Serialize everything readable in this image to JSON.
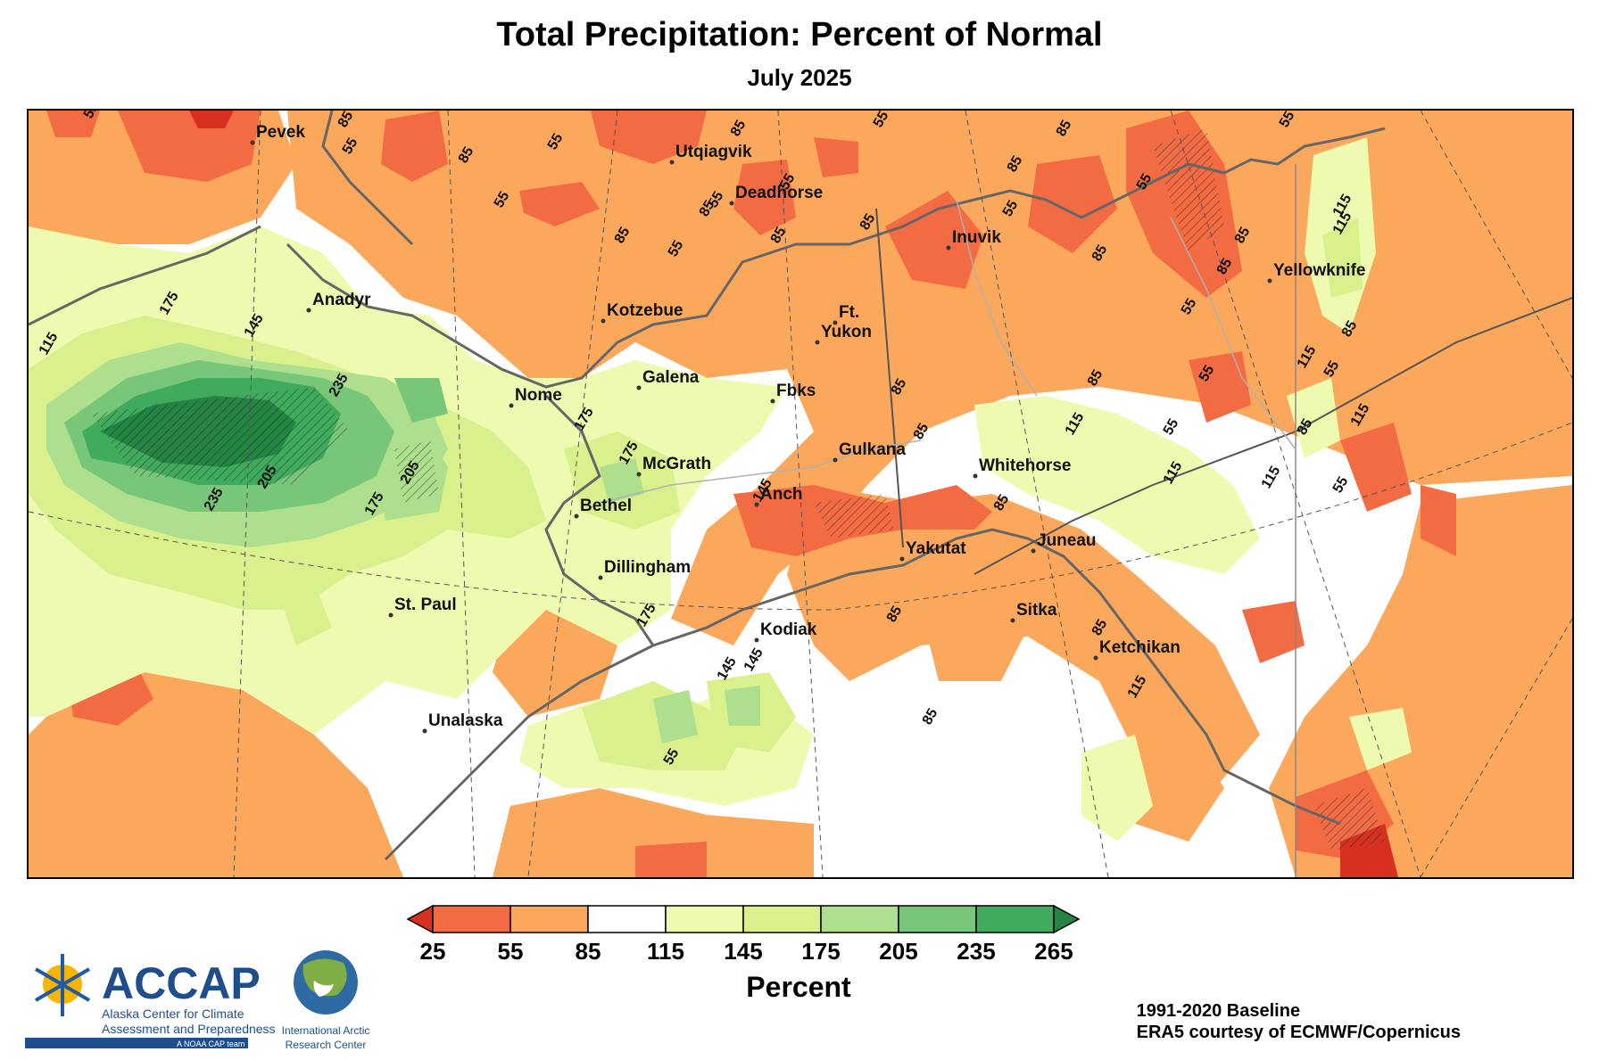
{
  "title": "Total Precipitation: Percent of Normal",
  "subtitle": "July 2025",
  "legend": {
    "colors": [
      "#d7301f",
      "#f26b43",
      "#fba85c",
      "#ffffff",
      "#eefaaf",
      "#d9f08c",
      "#addf8e",
      "#78c679",
      "#41ab5d",
      "#238443"
    ],
    "ticks": [
      "25",
      "55",
      "85",
      "115",
      "145",
      "175",
      "205",
      "235",
      "265"
    ],
    "units": "Percent"
  },
  "cities": [
    {
      "name": "Pevek"
    },
    {
      "name": "Utqiagvik"
    },
    {
      "name": "Deadhorse"
    },
    {
      "name": "Inuvik"
    },
    {
      "name": "Yellowknife"
    },
    {
      "name": "Anadyr"
    },
    {
      "name": "Kotzebue"
    },
    {
      "name": "Ft."
    },
    {
      "name": "Yukon"
    },
    {
      "name": "Galena"
    },
    {
      "name": "Nome"
    },
    {
      "name": "Fbks"
    },
    {
      "name": "Gulkana"
    },
    {
      "name": "Whitehorse"
    },
    {
      "name": "McGrath"
    },
    {
      "name": "Bethel"
    },
    {
      "name": "Anch"
    },
    {
      "name": "Yakutat"
    },
    {
      "name": "Juneau"
    },
    {
      "name": "Dillingham"
    },
    {
      "name": "St. Paul"
    },
    {
      "name": "Sitka"
    },
    {
      "name": "Kodiak"
    },
    {
      "name": "Ketchikan"
    },
    {
      "name": "Unalaska"
    }
  ],
  "contour_labels": [
    "55",
    "85",
    "55",
    "85",
    "55",
    "55",
    "85",
    "55",
    "85",
    "55",
    "85",
    "55",
    "85",
    "55",
    "85",
    "55",
    "85",
    "145",
    "115",
    "175",
    "145",
    "235",
    "205",
    "235",
    "175",
    "205",
    "175",
    "175",
    "55",
    "85",
    "85",
    "85",
    "55",
    "55",
    "115",
    "115",
    "85",
    "115",
    "85",
    "85",
    "145",
    "175",
    "85",
    "145",
    "115",
    "115",
    "85",
    "55",
    "85",
    "85",
    "115",
    "55",
    "115",
    "55",
    "85",
    "85",
    "55",
    "85",
    "55",
    "115"
  ],
  "footer": {
    "baseline": "1991-2020 Baseline",
    "source": "ERA5 courtesy of ECMWF/Copernicus"
  },
  "logo": {
    "acronym": "ACCAP",
    "line1": "Alaska Center for Climate",
    "line2": "Assessment and Preparedness",
    "tagline": "A NOAA CAP team",
    "iarc_line1": "International Arctic",
    "iarc_line2": "Research Center"
  }
}
